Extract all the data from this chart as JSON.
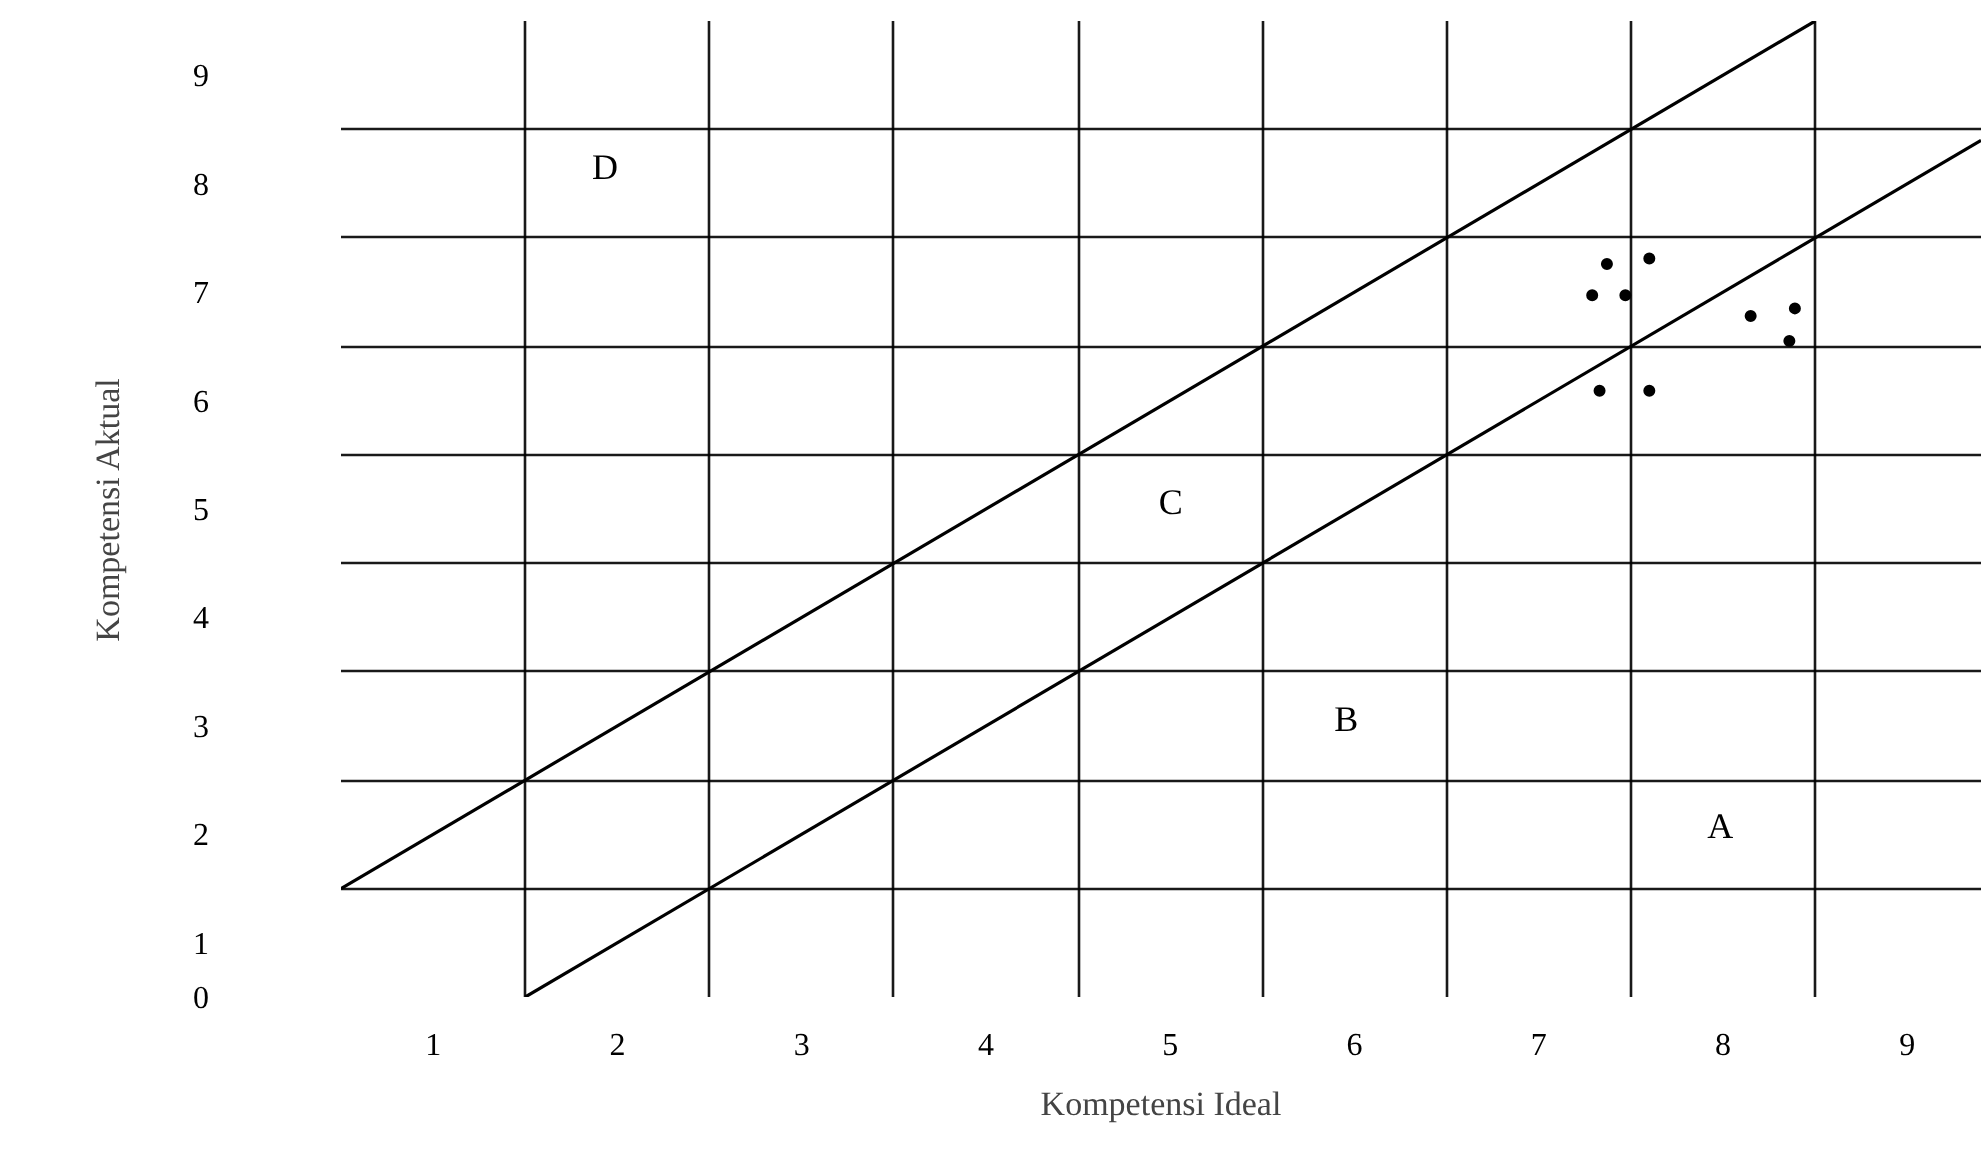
{
  "chart_data": {
    "type": "scatter",
    "xlabel": "Kompetensi Ideal",
    "ylabel": "Kompetensi Aktual",
    "xlim": [
      0.5,
      9.4
    ],
    "ylim": [
      0.5,
      9.5
    ],
    "xticks": [
      1,
      2,
      3,
      4,
      5,
      6,
      7,
      8,
      9
    ],
    "yticks": [
      {
        "value": 0.5,
        "label": "0"
      },
      1,
      2,
      3,
      4,
      5,
      6,
      7,
      8,
      9
    ],
    "grid": true,
    "series": [
      {
        "marker": "circle",
        "color": "#000000",
        "x": [
          7.37,
          7.6,
          7.29,
          7.47,
          8.15,
          8.39,
          8.36,
          7.33,
          7.6
        ],
        "values": [
          7.26,
          7.31,
          6.97,
          6.97,
          6.78,
          6.85,
          6.55,
          6.09,
          6.09
        ]
      },
      {
        "type": "line",
        "color": "#000000",
        "x": [
          0.5,
          8.5
        ],
        "values": [
          1.5,
          9.5
        ]
      },
      {
        "type": "line",
        "color": "#000000",
        "x": [
          1.5,
          9.4
        ],
        "values": [
          0.5,
          8.4
        ]
      }
    ],
    "annotations": [
      "D",
      "C",
      "B",
      "A"
    ]
  }
}
